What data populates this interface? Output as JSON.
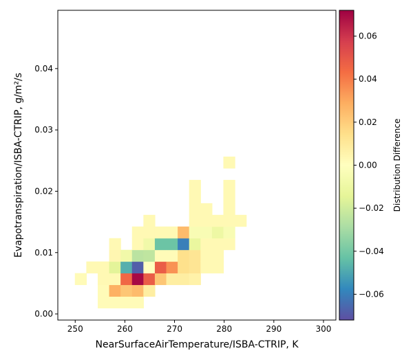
{
  "chart_data": {
    "type": "heatmap",
    "xlabel": "NearSurfaceAirTemperature/ISBA-CTRIP,  K",
    "ylabel": "Evapotranspiration/ISBA-CTRIP,  g/m²/s",
    "xlim": [
      246.5,
      302.5
    ],
    "ylim": [
      -0.001,
      0.0495
    ],
    "xticks": [
      250,
      260,
      270,
      280,
      290,
      300
    ],
    "yticks": [
      0.0,
      0.01,
      0.02,
      0.03,
      0.04
    ],
    "ytick_labels": [
      "0.00",
      "0.01",
      "0.02",
      "0.03",
      "0.04"
    ],
    "grid": false,
    "bin_width_x": 2.33,
    "bin_width_y": 0.0019,
    "cells": [
      {
        "x": 251.1,
        "y": 0.0057,
        "v": 0.002
      },
      {
        "x": 253.4,
        "y": 0.0076,
        "v": 0.003
      },
      {
        "x": 255.7,
        "y": 0.0019,
        "v": 0.002
      },
      {
        "x": 255.7,
        "y": 0.0038,
        "v": 0.002
      },
      {
        "x": 255.7,
        "y": 0.0057,
        "v": 0.003
      },
      {
        "x": 255.7,
        "y": 0.0076,
        "v": 0.003
      },
      {
        "x": 258.0,
        "y": 0.0019,
        "v": 0.002
      },
      {
        "x": 258.0,
        "y": 0.0038,
        "v": 0.028
      },
      {
        "x": 258.0,
        "y": 0.0057,
        "v": 0.003
      },
      {
        "x": 258.0,
        "y": 0.0076,
        "v": -0.015
      },
      {
        "x": 258.0,
        "y": 0.0095,
        "v": 0.004
      },
      {
        "x": 258.0,
        "y": 0.0114,
        "v": 0.003
      },
      {
        "x": 260.3,
        "y": 0.0019,
        "v": 0.002
      },
      {
        "x": 260.3,
        "y": 0.0038,
        "v": 0.022
      },
      {
        "x": 260.3,
        "y": 0.0057,
        "v": 0.045
      },
      {
        "x": 260.3,
        "y": 0.0076,
        "v": -0.048
      },
      {
        "x": 260.3,
        "y": 0.0095,
        "v": -0.008
      },
      {
        "x": 262.6,
        "y": 0.0019,
        "v": 0.002
      },
      {
        "x": 262.6,
        "y": 0.0038,
        "v": 0.025
      },
      {
        "x": 262.6,
        "y": 0.0057,
        "v": 0.07
      },
      {
        "x": 262.6,
        "y": 0.0076,
        "v": -0.068
      },
      {
        "x": 262.6,
        "y": 0.0095,
        "v": -0.025
      },
      {
        "x": 262.6,
        "y": 0.0114,
        "v": 0.003
      },
      {
        "x": 262.6,
        "y": 0.0133,
        "v": 0.003
      },
      {
        "x": 264.9,
        "y": 0.0038,
        "v": 0.008
      },
      {
        "x": 264.9,
        "y": 0.0057,
        "v": 0.048
      },
      {
        "x": 264.9,
        "y": 0.0076,
        "v": 0.0
      },
      {
        "x": 264.9,
        "y": 0.0095,
        "v": -0.024
      },
      {
        "x": 264.9,
        "y": 0.0114,
        "v": -0.008
      },
      {
        "x": 264.9,
        "y": 0.0133,
        "v": 0.003
      },
      {
        "x": 264.9,
        "y": 0.0152,
        "v": 0.003
      },
      {
        "x": 267.2,
        "y": 0.0057,
        "v": 0.022
      },
      {
        "x": 267.2,
        "y": 0.0076,
        "v": 0.048
      },
      {
        "x": 267.2,
        "y": 0.0095,
        "v": 0.002
      },
      {
        "x": 267.2,
        "y": 0.0114,
        "v": -0.042
      },
      {
        "x": 267.2,
        "y": 0.0133,
        "v": 0.003
      },
      {
        "x": 269.5,
        "y": 0.0057,
        "v": 0.008
      },
      {
        "x": 269.5,
        "y": 0.0076,
        "v": 0.035
      },
      {
        "x": 269.5,
        "y": 0.0095,
        "v": 0.002
      },
      {
        "x": 269.5,
        "y": 0.0114,
        "v": -0.042
      },
      {
        "x": 269.5,
        "y": 0.0133,
        "v": 0.003
      },
      {
        "x": 271.8,
        "y": 0.0057,
        "v": 0.008
      },
      {
        "x": 271.8,
        "y": 0.0076,
        "v": 0.014
      },
      {
        "x": 271.8,
        "y": 0.0095,
        "v": 0.014
      },
      {
        "x": 271.8,
        "y": 0.0114,
        "v": -0.06
      },
      {
        "x": 271.8,
        "y": 0.0133,
        "v": 0.025
      },
      {
        "x": 274.1,
        "y": 0.0057,
        "v": 0.006
      },
      {
        "x": 274.1,
        "y": 0.0076,
        "v": 0.012
      },
      {
        "x": 274.1,
        "y": 0.0095,
        "v": 0.012
      },
      {
        "x": 274.1,
        "y": 0.0114,
        "v": -0.012
      },
      {
        "x": 274.1,
        "y": 0.0133,
        "v": -0.004
      },
      {
        "x": 274.1,
        "y": 0.0152,
        "v": 0.003
      },
      {
        "x": 274.1,
        "y": 0.0171,
        "v": 0.003
      },
      {
        "x": 274.1,
        "y": 0.019,
        "v": 0.003
      },
      {
        "x": 274.1,
        "y": 0.0209,
        "v": 0.003
      },
      {
        "x": 276.4,
        "y": 0.0076,
        "v": 0.003
      },
      {
        "x": 276.4,
        "y": 0.0095,
        "v": 0.003
      },
      {
        "x": 276.4,
        "y": 0.0114,
        "v": 0.003
      },
      {
        "x": 276.4,
        "y": 0.0133,
        "v": -0.004
      },
      {
        "x": 276.4,
        "y": 0.0152,
        "v": 0.003
      },
      {
        "x": 276.4,
        "y": 0.0171,
        "v": 0.003
      },
      {
        "x": 278.7,
        "y": 0.0076,
        "v": 0.003
      },
      {
        "x": 278.7,
        "y": 0.0095,
        "v": 0.003
      },
      {
        "x": 278.7,
        "y": 0.0114,
        "v": 0.003
      },
      {
        "x": 278.7,
        "y": 0.0133,
        "v": -0.01
      },
      {
        "x": 278.7,
        "y": 0.0152,
        "v": 0.003
      },
      {
        "x": 281.0,
        "y": 0.0114,
        "v": 0.003
      },
      {
        "x": 281.0,
        "y": 0.0133,
        "v": -0.004
      },
      {
        "x": 281.0,
        "y": 0.0152,
        "v": 0.003
      },
      {
        "x": 281.0,
        "y": 0.0171,
        "v": 0.003
      },
      {
        "x": 281.0,
        "y": 0.019,
        "v": 0.003
      },
      {
        "x": 281.0,
        "y": 0.0209,
        "v": 0.003
      },
      {
        "x": 281.0,
        "y": 0.0247,
        "v": 0.003
      },
      {
        "x": 283.3,
        "y": 0.0152,
        "v": 0.003
      }
    ],
    "colorbar": {
      "label": "Distribution Difference",
      "colormap": "Spectral_r",
      "vmin": -0.072,
      "vmax": 0.072,
      "ticks": [
        -0.06,
        -0.04,
        -0.02,
        0.0,
        0.02,
        0.04,
        0.06
      ],
      "tick_labels": [
        "−0.06",
        "−0.04",
        "−0.02",
        "0.00",
        "0.02",
        "0.04",
        "0.06"
      ],
      "stops": [
        "#5e4fa2",
        "#3288bd",
        "#66c2a5",
        "#abdda4",
        "#e6f598",
        "#ffffbf",
        "#fee08b",
        "#fdae61",
        "#f46d43",
        "#d53e4f",
        "#9e0142"
      ]
    }
  }
}
